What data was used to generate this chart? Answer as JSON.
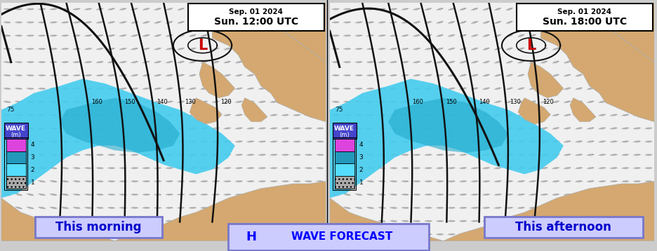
{
  "title_left": "Sep. 01 2024\nSun. 12:00 UTC",
  "title_right": "Sep. 01 2024\nSun. 18:00 UTC",
  "label_left": "This morning",
  "label_right": "This afternoon",
  "center_label": "WAVE FORECAST",
  "center_letter": "H",
  "low_label": "L",
  "colorbar_colors": [
    "#bbbbbb",
    "#55ddff",
    "#2299bb",
    "#dd44dd",
    "#660055"
  ],
  "wave_color": "#44ccee",
  "wave_color2": "#22aacc",
  "land_color": "#d4a870",
  "land_edge": "#aaaaaa",
  "bg_color": "#f0f0f0",
  "wind_color": "#888888",
  "isobar_color": "#111111",
  "label_bg": "#ccccff",
  "label_border": "#7777cc",
  "label_text_color": "#0000cc",
  "low_color": "#cc0000",
  "figsize": [
    9.36,
    3.58
  ],
  "dpi": 100
}
